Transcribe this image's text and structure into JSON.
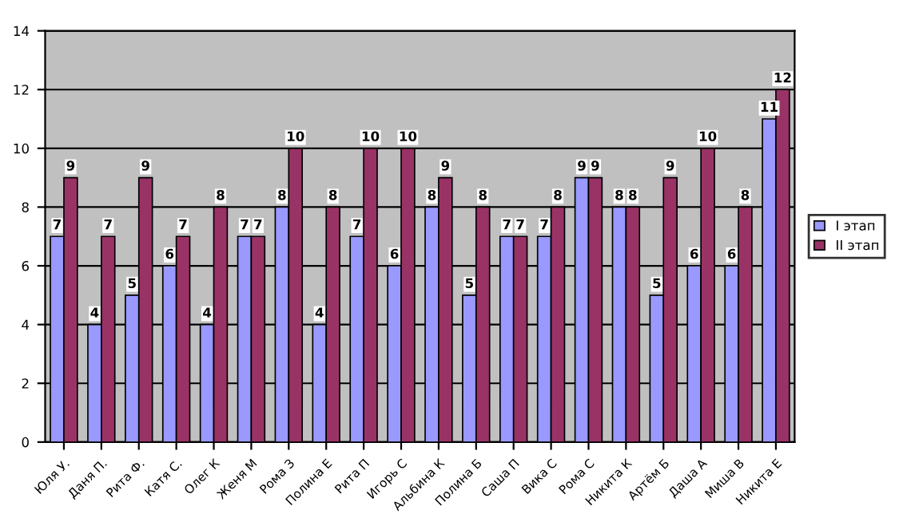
{
  "chart_data": {
    "type": "bar",
    "categories": [
      "Юля У.",
      "Даня П.",
      "Рита Ф.",
      "Катя С.",
      "Олег К",
      "Женя М",
      "Рома З",
      "Полина Е",
      "Рита П",
      "Игорь С",
      "Альбина К",
      "Полина Б",
      "Саша П",
      "Вика С",
      "Рома С",
      "Никита К",
      "Артём Б",
      "Даша А",
      "Миша В",
      "Никита Е"
    ],
    "series": [
      {
        "name": "I этап",
        "color": "#9999ff",
        "values": [
          7,
          4,
          5,
          6,
          4,
          7,
          8,
          4,
          7,
          6,
          8,
          5,
          7,
          7,
          9,
          8,
          5,
          6,
          6,
          11
        ]
      },
      {
        "name": "II этап",
        "color": "#993366",
        "values": [
          9,
          7,
          9,
          7,
          8,
          7,
          10,
          8,
          10,
          10,
          9,
          8,
          7,
          8,
          9,
          8,
          9,
          10,
          8,
          12
        ]
      }
    ],
    "ylim": [
      0,
      14
    ],
    "yticks": [
      0,
      2,
      4,
      6,
      8,
      10,
      12,
      14
    ],
    "grid": "y",
    "legend": "right",
    "data_labels": true
  }
}
